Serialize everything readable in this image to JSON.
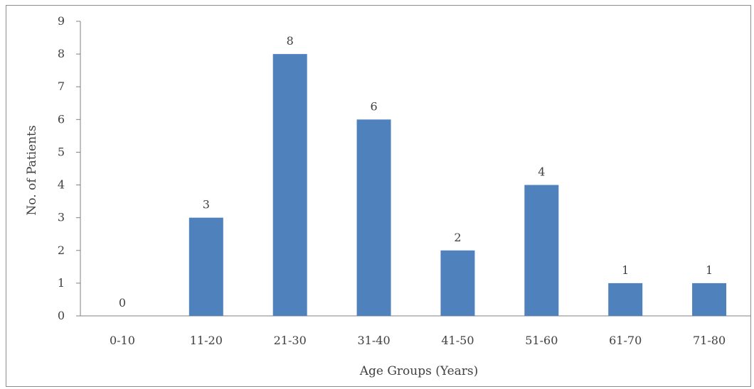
{
  "chart_data": {
    "type": "bar",
    "categories": [
      "0-10",
      "11-20",
      "21-30",
      "31-40",
      "41-50",
      "51-60",
      "61-70",
      "71-80"
    ],
    "values": [
      0,
      3,
      8,
      6,
      2,
      4,
      1,
      1
    ],
    "title": "",
    "xlabel": "Age Groups (Years)",
    "ylabel": "No. of Patients",
    "ylim": [
      0,
      9
    ],
    "yticks": [
      0,
      1,
      2,
      3,
      4,
      5,
      6,
      7,
      8,
      9
    ],
    "grid": false,
    "data_labels": true,
    "colors": {
      "bar": "#4f81bd",
      "axis": "#808080",
      "text": "#404040"
    }
  }
}
